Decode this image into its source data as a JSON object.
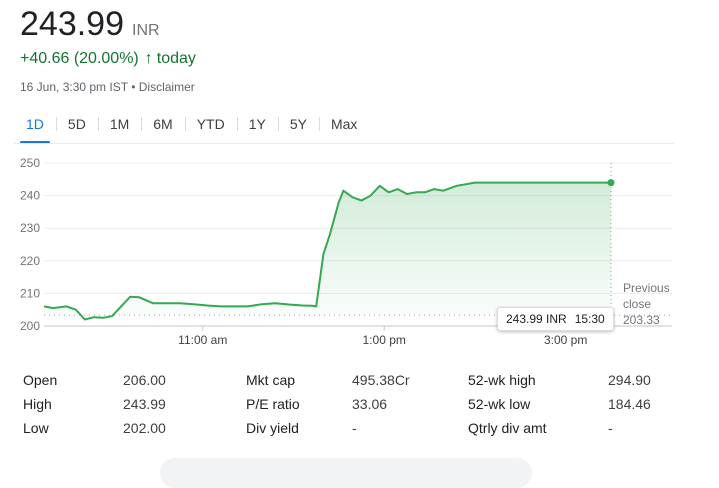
{
  "quote": {
    "price": "243.99",
    "currency": "INR",
    "change": "+40.66 (20.00%)",
    "change_arrow": "↑",
    "period": "today",
    "timestamp": "16 Jun, 3:30 pm IST",
    "separator": "•",
    "disclaimer": "Disclaimer",
    "accent_color": "#137333"
  },
  "tabs": [
    {
      "label": "1D",
      "active": true
    },
    {
      "label": "5D"
    },
    {
      "label": "1M"
    },
    {
      "label": "6M"
    },
    {
      "label": "YTD"
    },
    {
      "label": "1Y"
    },
    {
      "label": "5Y"
    },
    {
      "label": "Max"
    }
  ],
  "chart_data": {
    "type": "line",
    "line_color": "#34a853",
    "fill_color": "#e6f4ea",
    "ylim": [
      200,
      250
    ],
    "y_ticks": [
      "250",
      "240",
      "230",
      "220",
      "210",
      "200"
    ],
    "x_ticks": [
      {
        "label": "11:00 am",
        "hour": 11
      },
      {
        "label": "1:00 pm",
        "hour": 13
      },
      {
        "label": "3:00 pm",
        "hour": 15
      }
    ],
    "x_range_hours": [
      9.25,
      15.5
    ],
    "grid": true,
    "previous_close": 203.33,
    "previous_close_label": [
      "Previous",
      "close",
      "203.33"
    ],
    "series": [
      {
        "x": [
          9.25,
          9.35,
          9.5,
          9.6,
          9.7,
          9.8,
          9.9,
          10.0,
          10.1,
          10.2,
          10.3,
          10.45,
          10.6,
          10.75,
          10.9,
          11.05,
          11.2,
          11.35,
          11.5,
          11.65,
          11.8,
          11.95,
          12.1,
          12.2,
          12.25,
          12.33,
          12.4,
          12.5,
          12.55,
          12.65,
          12.75,
          12.85,
          12.95,
          13.05,
          13.15,
          13.25,
          13.35,
          13.45,
          13.55,
          13.65,
          13.8,
          14.0,
          14.25,
          14.5,
          14.75,
          15.0,
          15.25,
          15.5
        ],
        "values": [
          206,
          205.5,
          206,
          205,
          202,
          202.7,
          202.5,
          203,
          206,
          209,
          208.8,
          207,
          207,
          207,
          206.7,
          206.3,
          206,
          206,
          206,
          206.7,
          207,
          206.6,
          206.3,
          206.2,
          206.0,
          222,
          228,
          238,
          241.5,
          239.5,
          238.5,
          240.0,
          243,
          241,
          242,
          240.5,
          241,
          241,
          242,
          241.5,
          243,
          244,
          244,
          244,
          244,
          244,
          244,
          243.99
        ]
      }
    ],
    "tooltip": {
      "price": "243.99 INR",
      "time": "15:30"
    }
  },
  "stats": [
    [
      {
        "key": "Open",
        "value": "206.00"
      },
      {
        "key": "High",
        "value": "243.99"
      },
      {
        "key": "Low",
        "value": "202.00"
      }
    ],
    [
      {
        "key": "Mkt cap",
        "value": "495.38Cr"
      },
      {
        "key": "P/E ratio",
        "value": "33.06"
      },
      {
        "key": "Div yield",
        "value": "-"
      }
    ],
    [
      {
        "key": "52-wk high",
        "value": "294.90"
      },
      {
        "key": "52-wk low",
        "value": "184.46"
      },
      {
        "key": "Qtrly div amt",
        "value": "-"
      }
    ]
  ]
}
